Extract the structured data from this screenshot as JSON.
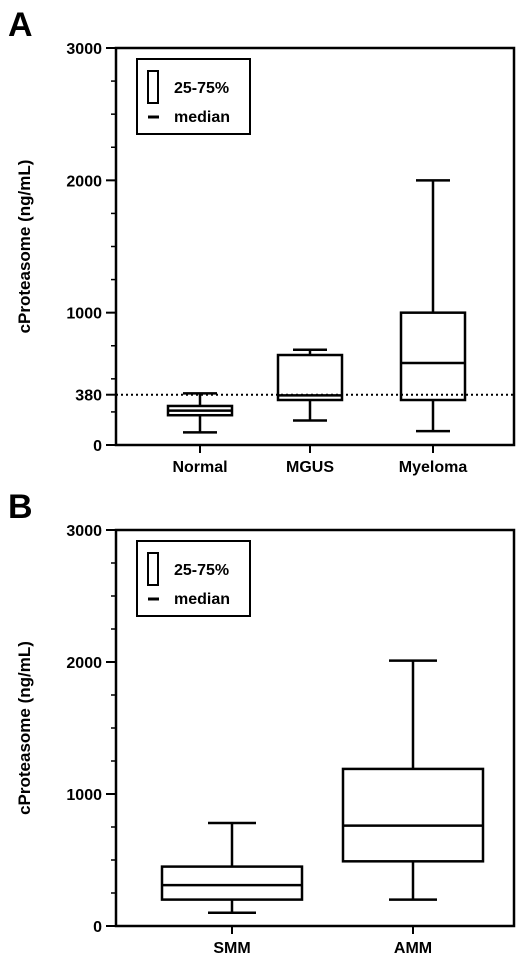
{
  "chart_data": [
    {
      "panel": "A",
      "type": "box",
      "ylabel": "cProteasome (ng/mL)",
      "ylim": [
        0,
        3000
      ],
      "yticks": [
        0,
        380,
        1000,
        2000,
        3000
      ],
      "reference_line": {
        "value": 380,
        "style": "dotted"
      },
      "legend": {
        "box_label": "25-75%",
        "median_label": "median",
        "position": "top-left"
      },
      "categories": [
        "Normal",
        "MGUS",
        "Myeloma"
      ],
      "boxes": [
        {
          "category": "Normal",
          "min": 95,
          "q1": 225,
          "median": 260,
          "q3": 295,
          "max": 390
        },
        {
          "category": "MGUS",
          "min": 185,
          "q1": 340,
          "median": 375,
          "q3": 680,
          "max": 720
        },
        {
          "category": "Myeloma",
          "min": 105,
          "q1": 340,
          "median": 620,
          "q3": 1000,
          "max": 2000
        }
      ]
    },
    {
      "panel": "B",
      "type": "box",
      "ylabel": "cProteasome (ng/mL)",
      "ylim": [
        0,
        3000
      ],
      "yticks": [
        0,
        1000,
        2000,
        3000
      ],
      "legend": {
        "box_label": "25-75%",
        "median_label": "median",
        "position": "top-left"
      },
      "categories": [
        "SMM",
        "AMM"
      ],
      "boxes": [
        {
          "category": "SMM",
          "min": 100,
          "q1": 200,
          "median": 310,
          "q3": 450,
          "max": 780
        },
        {
          "category": "AMM",
          "min": 200,
          "q1": 490,
          "median": 760,
          "q3": 1190,
          "max": 2010
        }
      ]
    }
  ]
}
